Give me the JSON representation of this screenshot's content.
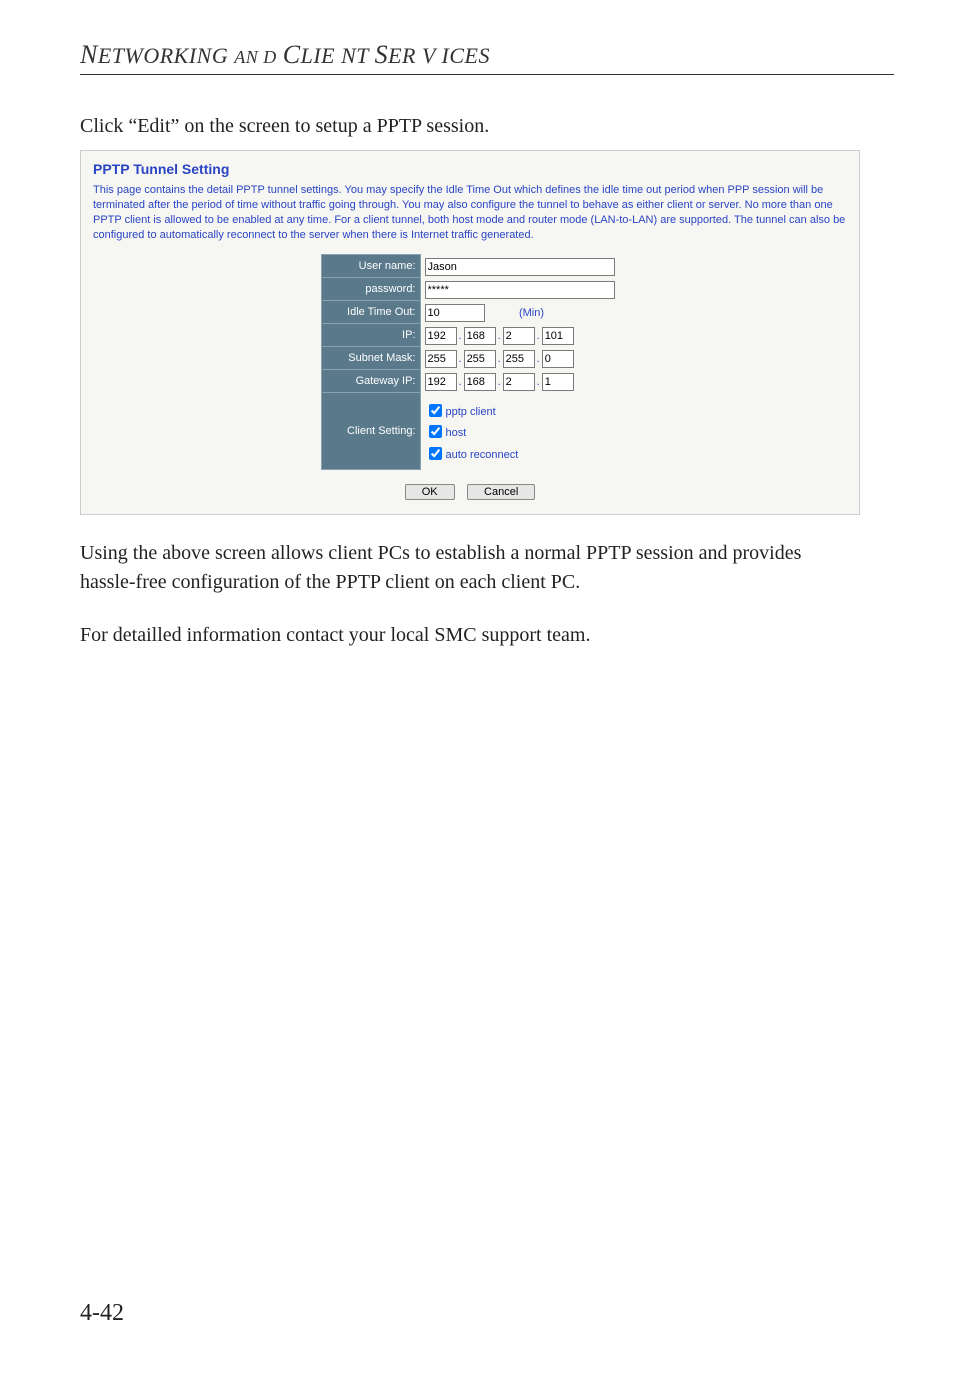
{
  "header": {
    "text": "Networking and Client Services"
  },
  "intro": {
    "line": "Click “Edit” on the screen to setup a PPTP session."
  },
  "panel": {
    "title": "PPTP Tunnel Setting",
    "description": "This page contains the detail PPTP tunnel settings. You may specify the Idle Time Out which defines the idle time out period when PPP session will be terminated after the period of time without traffic going through. You may also configure the tunnel to behave as either client or server. No more than one PPTP client is allowed to be enabled at any time. For a client tunnel, both host mode and router mode (LAN-to-LAN) are supported. The tunnel can also be configured to automatically reconnect to the server when there is Internet traffic generated.",
    "labels": {
      "username": "User name:",
      "password": "password:",
      "idle": "Idle Time Out:",
      "ip": "IP:",
      "subnet": "Subnet Mask:",
      "gateway": "Gateway IP:",
      "client": "Client Setting:"
    },
    "values": {
      "username": "Jason",
      "password": "*****",
      "idle": "10",
      "idle_unit": "(Min)",
      "ip": [
        "192",
        "168",
        "2",
        "101"
      ],
      "subnet": [
        "255",
        "255",
        "255",
        "0"
      ],
      "gateway": [
        "192",
        "168",
        "2",
        "1"
      ]
    },
    "client_options": {
      "pptp_client": {
        "label": "pptp client",
        "checked": true
      },
      "host": {
        "label": "host",
        "checked": true
      },
      "auto": {
        "label": "auto reconnect",
        "checked": true
      }
    },
    "buttons": {
      "ok": "OK",
      "cancel": "Cancel"
    },
    "colors": {
      "panel_bg": "#f6f6f3",
      "title_color": "#2a45c4",
      "label_bg": "#5a7a8c"
    }
  },
  "para1": "Using the above screen allows client PCs to establish a normal PPTP session and provides hassle-free configuration of the PPTP client on each client PC.",
  "para2": "For detailled information contact your local SMC support team.",
  "page_number": "4-42"
}
